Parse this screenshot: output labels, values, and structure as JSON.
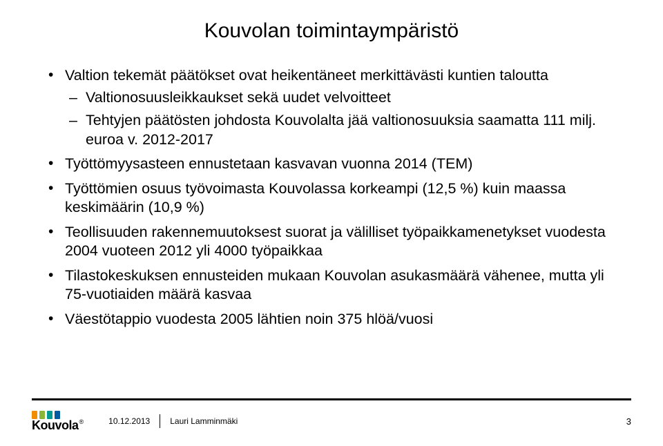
{
  "title": "Kouvolan toimintaympäristö",
  "bullets": [
    {
      "text": "Valtion tekemät päätökset ovat heikentäneet merkittävästi kuntien taloutta",
      "children": [
        "Valtionosuusleikkaukset sekä uudet velvoitteet",
        "Tehtyjen päätösten johdosta Kouvolalta jää valtionosuuksia saamatta 111 milj. euroa v. 2012-2017"
      ]
    },
    {
      "text": "Työttömyysasteen ennustetaan kasvavan vuonna 2014 (TEM)"
    },
    {
      "text": "Työttömien osuus työvoimasta Kouvolassa korkeampi (12,5 %) kuin maassa keskimäärin (10,9 %)"
    },
    {
      "text": "Teollisuuden rakennemuutoksest suorat ja välilliset työpaikkamenetykset vuodesta 2004 vuoteen 2012 yli 4000 työpaikkaa"
    },
    {
      "text": "Tilastokeskuksen ennusteiden mukaan Kouvolan asukasmäärä vähenee, mutta yli 75-vuotiaiden määrä kasvaa"
    },
    {
      "text": "Väestötappio vuodesta 2005 lähtien noin 375 hlöä/vuosi"
    }
  ],
  "logo": {
    "name": "Kouvola",
    "reg": "®",
    "colors": [
      "#f28c00",
      "#8bb63a",
      "#009a93",
      "#005aa0"
    ]
  },
  "footer": {
    "date": "10.12.2013",
    "author": "Lauri Lamminmäki",
    "page": "3"
  }
}
